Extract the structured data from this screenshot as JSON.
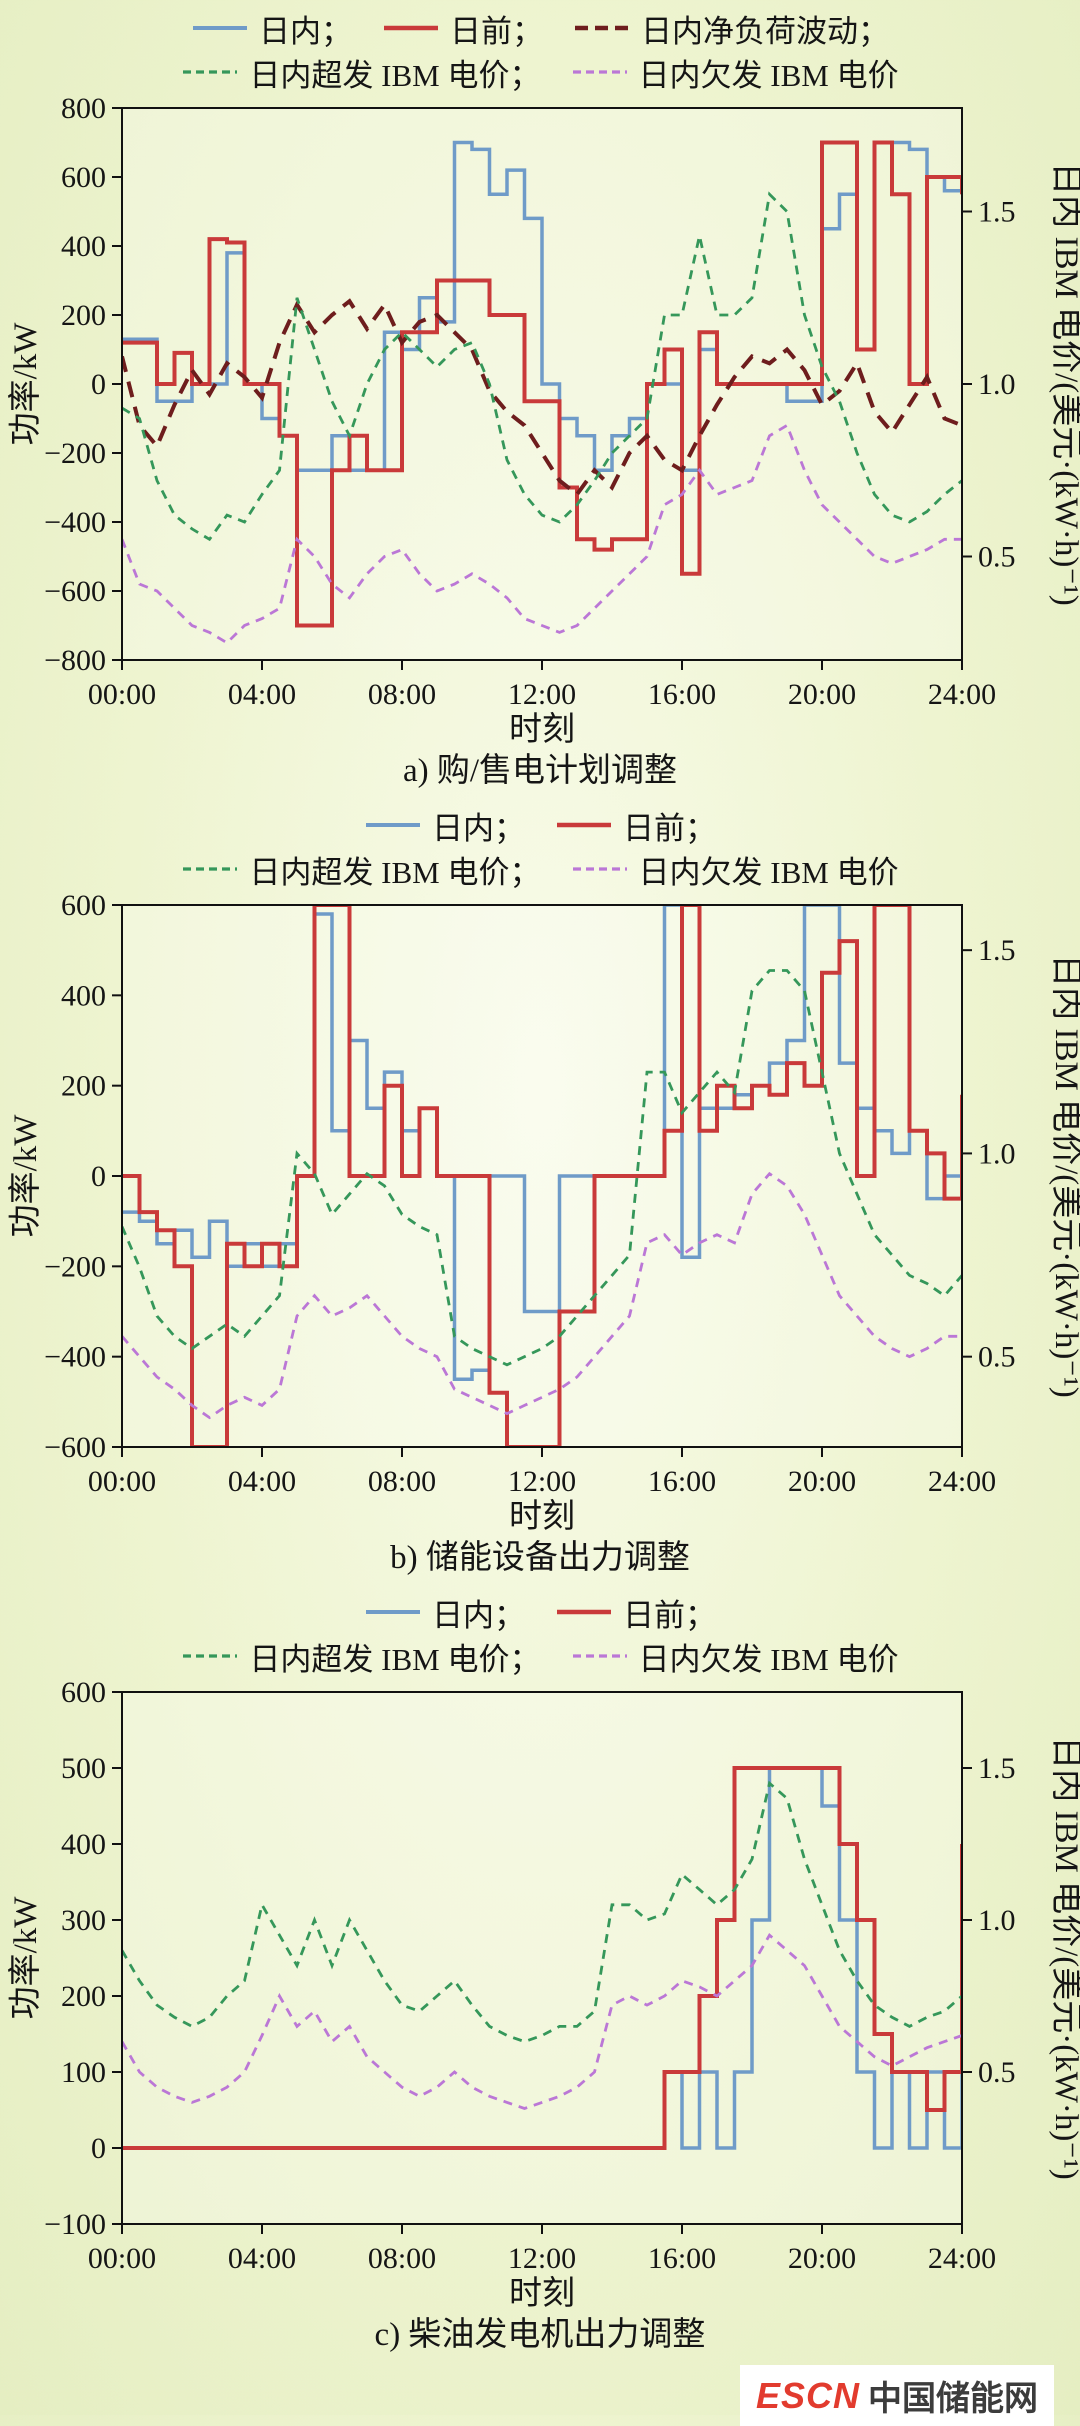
{
  "page": {
    "logo": {
      "brand": "ESCN",
      "name": "中国储能网"
    }
  },
  "axes_common": {
    "x_label": "时刻",
    "x_ticks": [
      "00:00",
      "04:00",
      "08:00",
      "12:00",
      "16:00",
      "20:00",
      "24:00"
    ],
    "left_label": "功率/kW",
    "right_label": "日内 IBM 电价/(美元·(kW·h)⁻¹)",
    "right_ticks": [
      0.5,
      1.0,
      1.5
    ],
    "x_hours": {
      "start": 0,
      "end": 24,
      "sample_step_h": 0.5
    }
  },
  "chart_data": [
    {
      "id": "a",
      "type": "line",
      "caption": "a) 购/售电计划调整",
      "ylim": [
        -800,
        800
      ],
      "ytick_step": 200,
      "right_axis": {
        "at1": 0,
        "per_unit": 1000
      },
      "legend_split": 3,
      "series": [
        {
          "key": "intraday",
          "name": "日内；",
          "color": "#6f9bc8",
          "style": "solid",
          "width": 3.5,
          "axis": "left",
          "interp": "step",
          "values": [
            130,
            130,
            -50,
            -50,
            0,
            0,
            380,
            0,
            -100,
            -150,
            -250,
            -250,
            -150,
            -250,
            -250,
            150,
            100,
            250,
            180,
            700,
            680,
            550,
            620,
            480,
            0,
            -100,
            -150,
            -250,
            -150,
            -100,
            0,
            0,
            -250,
            100,
            0,
            0,
            0,
            0,
            -50,
            -50,
            450,
            550,
            100,
            700,
            700,
            680,
            600,
            560,
            550
          ]
        },
        {
          "key": "day_ahead",
          "name": "日前；",
          "color": "#c93a3a",
          "style": "solid",
          "width": 4,
          "axis": "left",
          "interp": "step",
          "values": [
            120,
            120,
            0,
            90,
            0,
            420,
            410,
            0,
            0,
            -150,
            -700,
            -700,
            -250,
            -150,
            -250,
            -250,
            150,
            150,
            300,
            300,
            300,
            200,
            200,
            -50,
            -50,
            -300,
            -450,
            -480,
            -450,
            -450,
            0,
            100,
            -550,
            150,
            0,
            0,
            0,
            0,
            0,
            0,
            700,
            700,
            100,
            700,
            550,
            0,
            600,
            600,
            550
          ]
        },
        {
          "key": "net_load",
          "name": "日内净负荷波动；",
          "color": "#6e1d1d",
          "style": "longdash",
          "width": 4,
          "axis": "left",
          "interp": "linear",
          "values": [
            80,
            -120,
            -180,
            -60,
            40,
            -30,
            60,
            20,
            -40,
            120,
            230,
            150,
            200,
            240,
            160,
            230,
            120,
            180,
            200,
            150,
            100,
            -20,
            -80,
            -120,
            -200,
            -280,
            -320,
            -250,
            -300,
            -200,
            -150,
            -220,
            -250,
            -150,
            -60,
            20,
            80,
            60,
            100,
            40,
            -60,
            -20,
            60,
            -80,
            -140,
            -60,
            20,
            -100,
            -120
          ]
        },
        {
          "key": "over_gen_price",
          "name": "日内超发 IBM 电价；",
          "color": "#35975a",
          "style": "dash",
          "width": 2.8,
          "axis": "right",
          "interp": "linear",
          "values": [
            0.93,
            0.9,
            0.72,
            0.62,
            0.58,
            0.55,
            0.62,
            0.6,
            0.68,
            0.75,
            1.25,
            1.1,
            0.95,
            0.85,
            1.0,
            1.1,
            1.15,
            1.1,
            1.05,
            1.1,
            1.12,
            1.0,
            0.78,
            0.68,
            0.62,
            0.6,
            0.65,
            0.72,
            0.8,
            0.85,
            0.9,
            1.2,
            1.2,
            1.43,
            1.2,
            1.2,
            1.25,
            1.55,
            1.5,
            1.2,
            1.05,
            0.95,
            0.8,
            0.68,
            0.62,
            0.6,
            0.63,
            0.68,
            0.72
          ]
        },
        {
          "key": "under_gen_price",
          "name": "日内欠发 IBM 电价",
          "color": "#bb77d6",
          "style": "dash",
          "width": 2.8,
          "axis": "right",
          "interp": "linear",
          "values": [
            0.55,
            0.42,
            0.4,
            0.35,
            0.3,
            0.28,
            0.25,
            0.3,
            0.32,
            0.35,
            0.55,
            0.5,
            0.42,
            0.38,
            0.45,
            0.5,
            0.52,
            0.45,
            0.4,
            0.42,
            0.45,
            0.42,
            0.38,
            0.32,
            0.3,
            0.28,
            0.3,
            0.35,
            0.4,
            0.45,
            0.5,
            0.65,
            0.68,
            0.75,
            0.68,
            0.7,
            0.72,
            0.85,
            0.88,
            0.75,
            0.65,
            0.6,
            0.55,
            0.5,
            0.48,
            0.5,
            0.52,
            0.55,
            0.55
          ]
        }
      ]
    },
    {
      "id": "b",
      "type": "line",
      "caption": "b) 储能设备出力调整",
      "ylim": [
        -600,
        600
      ],
      "ytick_step": 200,
      "right_axis": {
        "at1": 50,
        "per_unit": 900
      },
      "legend_split": 2,
      "series": [
        {
          "key": "intraday",
          "name": "日内；",
          "color": "#6f9bc8",
          "style": "solid",
          "width": 3.5,
          "axis": "left",
          "interp": "step",
          "values": [
            -80,
            -100,
            -150,
            -120,
            -180,
            -100,
            -200,
            -150,
            -200,
            -150,
            0,
            580,
            100,
            300,
            150,
            230,
            100,
            150,
            0,
            -450,
            -430,
            0,
            0,
            -300,
            -300,
            0,
            0,
            0,
            0,
            0,
            0,
            600,
            -180,
            150,
            150,
            180,
            200,
            250,
            300,
            600,
            600,
            250,
            150,
            100,
            50,
            100,
            -50,
            0,
            150
          ]
        },
        {
          "key": "day_ahead",
          "name": "日前；",
          "color": "#c93a3a",
          "style": "solid",
          "width": 4,
          "axis": "left",
          "interp": "step",
          "values": [
            0,
            -80,
            -120,
            -200,
            -600,
            -600,
            -150,
            -200,
            -150,
            -200,
            0,
            600,
            600,
            0,
            0,
            200,
            0,
            150,
            0,
            0,
            0,
            -480,
            -600,
            -600,
            -600,
            -300,
            -300,
            0,
            0,
            0,
            0,
            100,
            600,
            100,
            200,
            150,
            200,
            180,
            250,
            200,
            450,
            520,
            0,
            600,
            600,
            100,
            50,
            -50,
            180
          ]
        },
        {
          "key": "over_gen_price",
          "name": "日内超发 IBM 电价；",
          "color": "#35975a",
          "style": "dash",
          "width": 2.8,
          "axis": "right",
          "interp": "linear",
          "values": [
            0.82,
            0.72,
            0.6,
            0.55,
            0.52,
            0.55,
            0.58,
            0.55,
            0.6,
            0.65,
            1.0,
            0.95,
            0.85,
            0.9,
            0.95,
            0.92,
            0.85,
            0.82,
            0.8,
            0.55,
            0.52,
            0.5,
            0.48,
            0.5,
            0.52,
            0.55,
            0.6,
            0.65,
            0.7,
            0.75,
            1.2,
            1.2,
            1.1,
            1.15,
            1.2,
            1.15,
            1.4,
            1.45,
            1.45,
            1.4,
            1.2,
            1.0,
            0.9,
            0.8,
            0.75,
            0.7,
            0.68,
            0.65,
            0.7
          ]
        },
        {
          "key": "under_gen_price",
          "name": "日内欠发 IBM 电价",
          "color": "#bb77d6",
          "style": "dash",
          "width": 2.8,
          "axis": "right",
          "interp": "linear",
          "values": [
            0.55,
            0.5,
            0.45,
            0.42,
            0.38,
            0.35,
            0.38,
            0.4,
            0.38,
            0.42,
            0.6,
            0.65,
            0.6,
            0.62,
            0.65,
            0.6,
            0.55,
            0.52,
            0.5,
            0.42,
            0.4,
            0.38,
            0.36,
            0.38,
            0.4,
            0.42,
            0.45,
            0.5,
            0.55,
            0.6,
            0.78,
            0.8,
            0.75,
            0.78,
            0.8,
            0.78,
            0.9,
            0.95,
            0.92,
            0.85,
            0.75,
            0.65,
            0.6,
            0.55,
            0.52,
            0.5,
            0.52,
            0.55,
            0.55
          ]
        }
      ]
    },
    {
      "id": "c",
      "type": "line",
      "caption": "c) 柴油发电机出力调整",
      "ylim": [
        -100,
        600
      ],
      "ytick_step": 100,
      "right_axis": {
        "at1": 300,
        "per_unit": 400
      },
      "legend_split": 2,
      "series": [
        {
          "key": "intraday",
          "name": "日内；",
          "color": "#6f9bc8",
          "style": "solid",
          "width": 3.5,
          "axis": "left",
          "interp": "step",
          "values": [
            0,
            0,
            0,
            0,
            0,
            0,
            0,
            0,
            0,
            0,
            0,
            0,
            0,
            0,
            0,
            0,
            0,
            0,
            0,
            0,
            0,
            0,
            0,
            0,
            0,
            0,
            0,
            0,
            0,
            0,
            0,
            100,
            0,
            100,
            0,
            100,
            300,
            500,
            500,
            500,
            450,
            300,
            100,
            0,
            100,
            0,
            100,
            0,
            100
          ]
        },
        {
          "key": "day_ahead",
          "name": "日前；",
          "color": "#c93a3a",
          "style": "solid",
          "width": 4,
          "axis": "left",
          "interp": "step",
          "values": [
            0,
            0,
            0,
            0,
            0,
            0,
            0,
            0,
            0,
            0,
            0,
            0,
            0,
            0,
            0,
            0,
            0,
            0,
            0,
            0,
            0,
            0,
            0,
            0,
            0,
            0,
            0,
            0,
            0,
            0,
            0,
            100,
            100,
            200,
            300,
            500,
            500,
            500,
            500,
            500,
            500,
            400,
            300,
            150,
            100,
            100,
            50,
            100,
            400
          ]
        },
        {
          "key": "over_gen_price",
          "name": "日内超发 IBM 电价；",
          "color": "#35975a",
          "style": "dash",
          "width": 2.8,
          "axis": "right",
          "interp": "linear",
          "values": [
            0.9,
            0.8,
            0.72,
            0.68,
            0.65,
            0.68,
            0.75,
            0.8,
            1.05,
            0.95,
            0.85,
            1.0,
            0.85,
            1.0,
            0.9,
            0.8,
            0.72,
            0.7,
            0.75,
            0.8,
            0.72,
            0.65,
            0.62,
            0.6,
            0.62,
            0.65,
            0.65,
            0.7,
            1.05,
            1.05,
            1.0,
            1.02,
            1.15,
            1.1,
            1.05,
            1.1,
            1.2,
            1.45,
            1.4,
            1.2,
            1.05,
            0.9,
            0.8,
            0.72,
            0.68,
            0.65,
            0.68,
            0.7,
            0.75
          ]
        },
        {
          "key": "under_gen_price",
          "name": "日内欠发 IBM 电价",
          "color": "#bb77d6",
          "style": "dash",
          "width": 2.8,
          "axis": "right",
          "interp": "linear",
          "values": [
            0.6,
            0.5,
            0.45,
            0.42,
            0.4,
            0.42,
            0.45,
            0.5,
            0.62,
            0.75,
            0.65,
            0.7,
            0.6,
            0.65,
            0.55,
            0.5,
            0.45,
            0.42,
            0.45,
            0.5,
            0.45,
            0.42,
            0.4,
            0.38,
            0.4,
            0.42,
            0.45,
            0.5,
            0.72,
            0.75,
            0.72,
            0.75,
            0.8,
            0.78,
            0.75,
            0.8,
            0.85,
            0.95,
            0.9,
            0.85,
            0.75,
            0.65,
            0.6,
            0.55,
            0.52,
            0.55,
            0.58,
            0.6,
            0.62
          ]
        }
      ]
    }
  ]
}
